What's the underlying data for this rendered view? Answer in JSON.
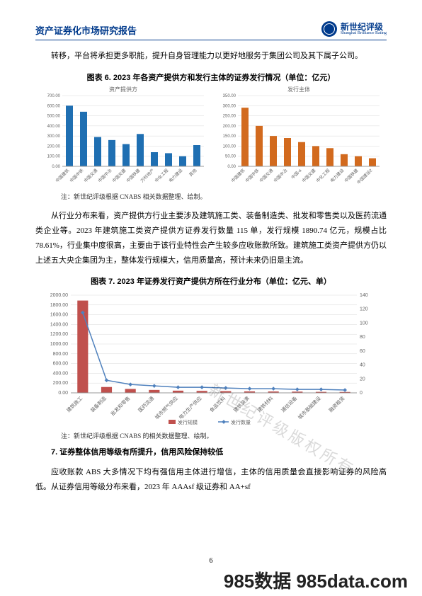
{
  "header": {
    "title": "资产证券化市场研究报告",
    "brand_cn": "新世纪评级",
    "brand_en": "Shanghai Brilliance Rating"
  },
  "para1": "转移，平台将承担更多职能，提升自身管理能力以更好地服务于集团公司及其下属子公司。",
  "fig6_title": "图表 6.  2023 年各资产提供方和发行主体的证券发行情况（单位：亿元）",
  "fig6_note": "注：新世纪评级根据 CNABS 相关数据整理、绘制。",
  "chart_left": {
    "title": "资产提供方",
    "categories": [
      "中国建筑",
      "中国中铁",
      "中国交通",
      "中国中冶",
      "中国交建",
      "中国铁建",
      "万科地产",
      "中化工程",
      "电力建设",
      "其他"
    ],
    "values": [
      600,
      540,
      290,
      260,
      220,
      320,
      140,
      130,
      100,
      210
    ],
    "ylim": [
      0,
      700
    ],
    "ytick_step": 100,
    "bar_color": "#1f6fb2",
    "grid_color": "#d9d9d9",
    "bg": "#ffffff"
  },
  "chart_right": {
    "title": "发行主体",
    "categories": [
      "中国建筑",
      "中国中铁",
      "中国交通",
      "中国中冶",
      "中国-a",
      "中国交建",
      "中化工程",
      "电力建设",
      "中国铁建",
      "中国建设2"
    ],
    "values": [
      290,
      200,
      150,
      140,
      120,
      100,
      90,
      60,
      50,
      40
    ],
    "ylim": [
      0,
      350
    ],
    "ytick_step": 50,
    "bar_color": "#d26a1e",
    "grid_color": "#d9d9d9",
    "bg": "#ffffff"
  },
  "para2": "从行业分布来看，资产提供方行业主要涉及建筑施工类、装备制造类、批发和零售类以及医药流通类企业等。2023 年建筑施工类资产提供方证券发行数量 115 单，发行规模 1890.74 亿元，规模占比 78.61%，行业集中度很高，主要由于该行业特性会产生较多应收账款所致。建筑施工类资产提供方仍以上述五大央企集团为主，整体发行规模大，信用质量高，预计未来仍旧是主流。",
  "fig7_title": "图表 7.  2023 年证券发行资产提供方所在行业分布（单位：亿元、单）",
  "fig7_note": "注：新世纪评级根据 CNABS 的相关数据整理、绘制。",
  "chart7": {
    "categories": [
      "建筑施工",
      "装备制造",
      "批发和零售",
      "医药流通",
      "城市燃气供应",
      "电力生产供应",
      "食品饮料",
      "建筑装潢",
      "建筑材料",
      "通信设备",
      "城市基础建设",
      "融资租赁"
    ],
    "bars": [
      1890,
      120,
      80,
      60,
      45,
      40,
      35,
      30,
      28,
      25,
      20,
      18
    ],
    "line": [
      115,
      18,
      12,
      10,
      8,
      8,
      7,
      6,
      6,
      5,
      5,
      4
    ],
    "ylim_left": [
      0,
      2000
    ],
    "ytick_left": 200,
    "ylim_right": [
      0,
      140
    ],
    "ytick_right": 20,
    "bar_color": "#c0504d",
    "line_color": "#4f81bd",
    "grid_color": "#d9d9d9",
    "legend_bar": "发行规模",
    "legend_line": "发行数量"
  },
  "sec7_title": "7.  证券整体信用等级有所提升，信用风险保持较低",
  "para3": "应收账款 ABS 大多情况下均有强信用主体进行增信，主体的信用质量会直接影响证券的风险高低。从证券信用等级分布来看，2023 年 AAAsf 级证券和 AA+sf",
  "page_num": "6",
  "footer_wm": "985数据 985data.com",
  "diag_wm": "新世纪评级版权所有"
}
